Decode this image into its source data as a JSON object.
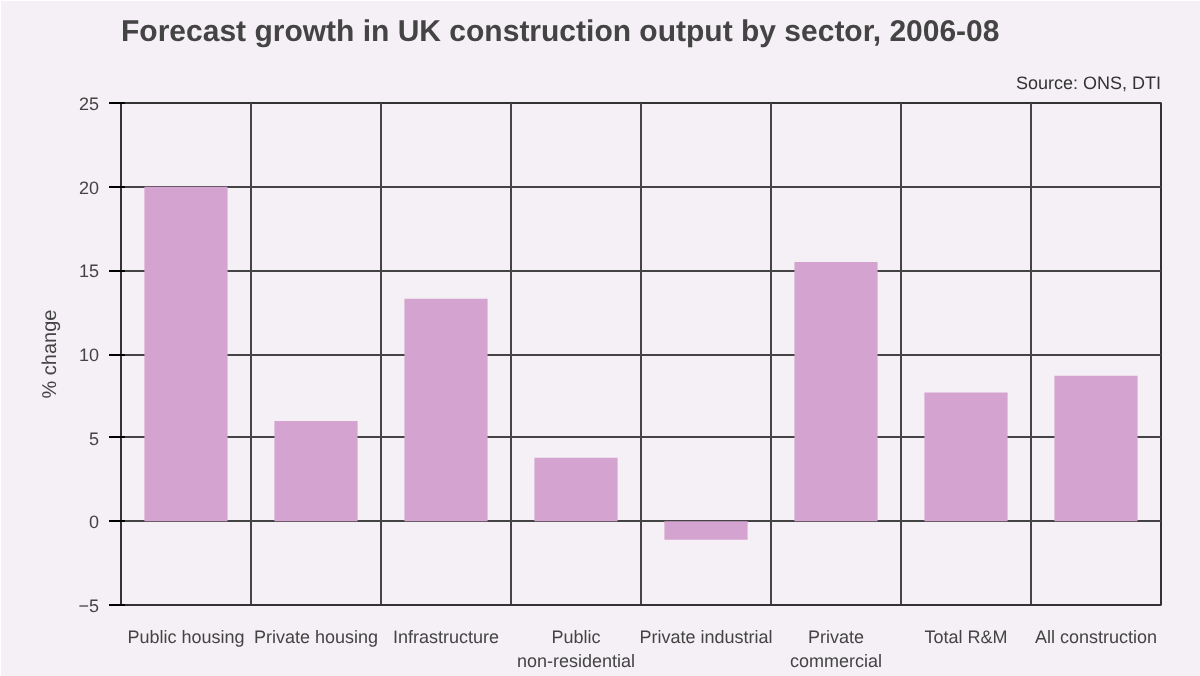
{
  "chart_data": {
    "type": "bar",
    "title": "Forecast growth in UK construction output by sector, 2006-08",
    "annotations": [
      "Source: ONS, DTI"
    ],
    "ylabel": "% change",
    "categories": [
      "Public housing",
      "Private housing",
      "Infrastructure",
      "Public\nnon-residential",
      "Private industrial",
      "Private\ncommercial",
      "Total R&M",
      "All construction"
    ],
    "values": [
      20,
      6,
      13.3,
      3.8,
      -1.1,
      15.5,
      7.7,
      8.7
    ],
    "color": "#d4a3d0",
    "ylim": [
      -5,
      25
    ],
    "yticks": [
      -5,
      0,
      5,
      10,
      15,
      20,
      25
    ],
    "grid": true
  }
}
